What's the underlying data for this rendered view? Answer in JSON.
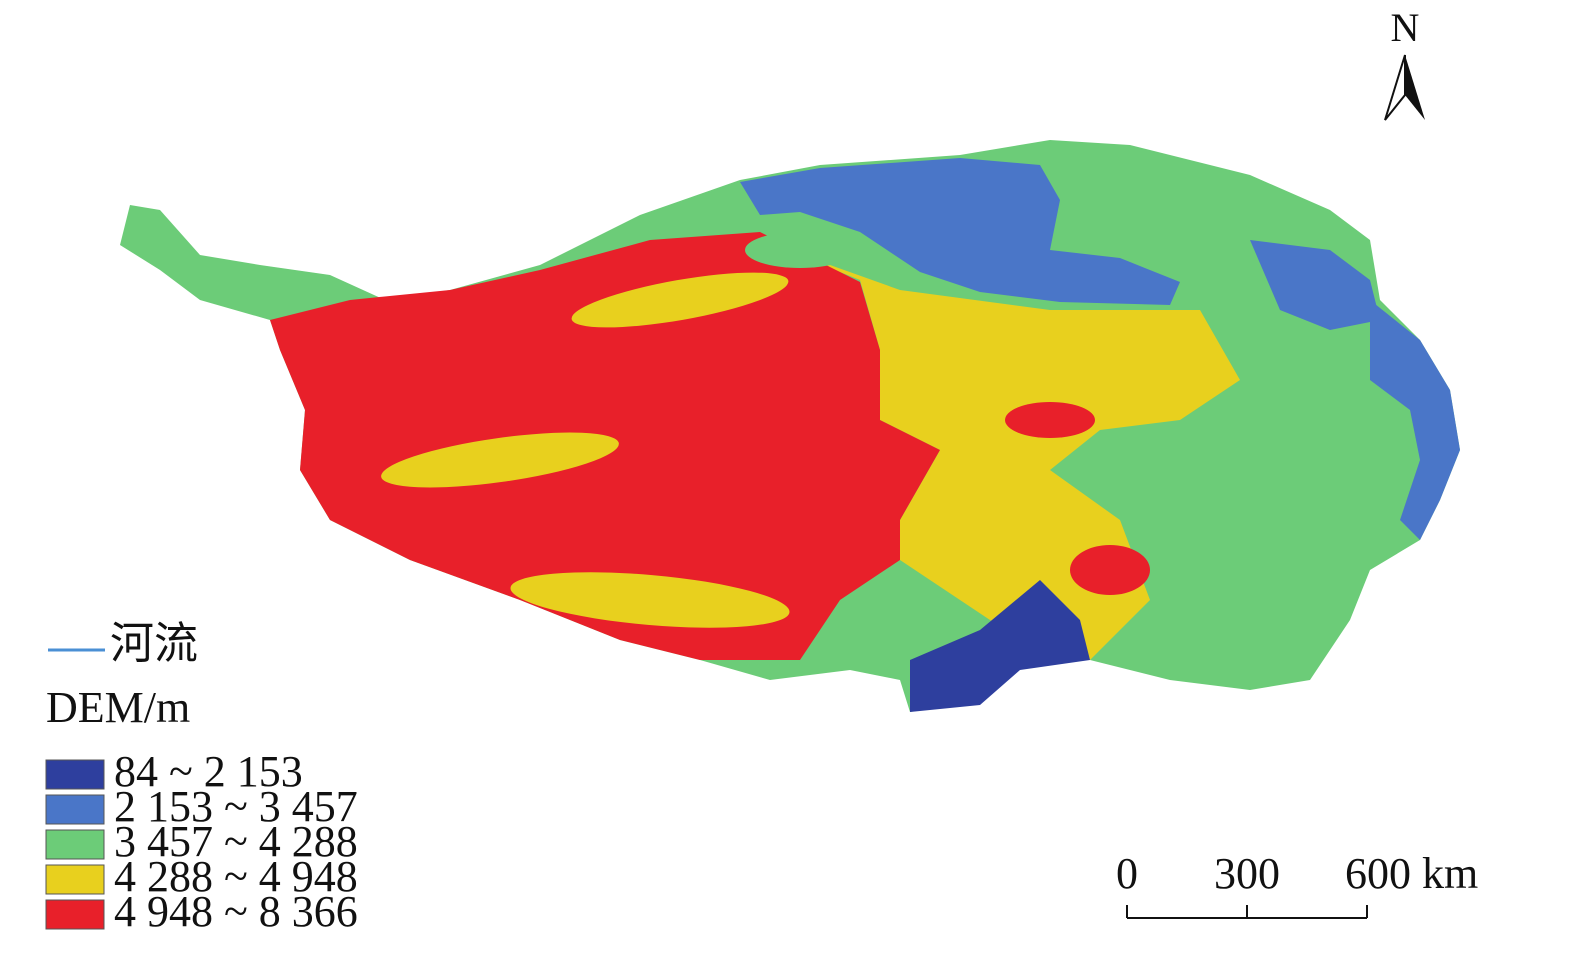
{
  "map": {
    "north_arrow": "N",
    "river_label": "河流",
    "river_color": "#4a8fd4",
    "legend_title": "DEM/m",
    "legend": [
      {
        "label": "84 ~ 2 153",
        "color": "#2e3f9e"
      },
      {
        "label": "2 153 ~ 3 457",
        "color": "#4a76c8"
      },
      {
        "label": "3 457 ~ 4 288",
        "color": "#6ccc78"
      },
      {
        "label": "4 288 ~ 4 948",
        "color": "#e8d01e"
      },
      {
        "label": "4 948 ~ 8 366",
        "color": "#e8202a"
      }
    ],
    "scale_bar": {
      "ticks": [
        0,
        300,
        {
          "value": 600,
          "label": "600 km"
        }
      ]
    }
  }
}
